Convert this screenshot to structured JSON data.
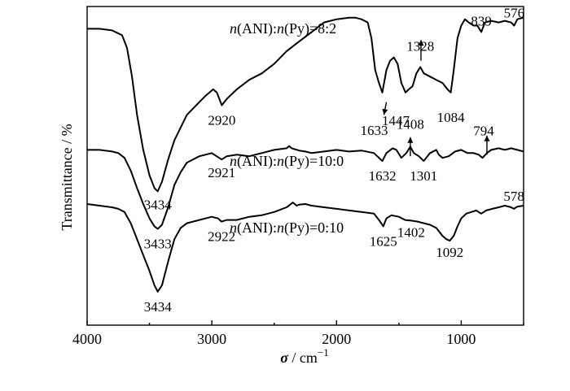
{
  "chart_data": {
    "type": "line",
    "xlabel_symbol": "σ",
    "xlabel_unit": " / cm",
    "xlabel_sup": "−1",
    "ylabel": "Transmittance / %",
    "xlim": [
      4000,
      500
    ],
    "x_reversed": true,
    "x_ticks": [
      4000,
      3000,
      2000,
      1000
    ],
    "x_tick_labels": [
      "4000",
      "3000",
      "2000",
      "1000"
    ],
    "grid": false,
    "legend": "none",
    "y_scale": "arbitrary",
    "ylim": [
      0,
      100
    ],
    "series": [
      {
        "label_prefix_a": "n",
        "label_mid_a": "(ANI):",
        "label_prefix_b": "n",
        "label_mid_b": "(Py)=8:2",
        "points": [
          [
            4000,
            93
          ],
          [
            3900,
            93
          ],
          [
            3800,
            92.5
          ],
          [
            3720,
            91
          ],
          [
            3680,
            87
          ],
          [
            3640,
            78
          ],
          [
            3600,
            66
          ],
          [
            3550,
            55
          ],
          [
            3500,
            47
          ],
          [
            3460,
            43
          ],
          [
            3434,
            42
          ],
          [
            3400,
            45
          ],
          [
            3350,
            52
          ],
          [
            3300,
            58
          ],
          [
            3200,
            66
          ],
          [
            3100,
            70
          ],
          [
            3050,
            72
          ],
          [
            2990,
            74
          ],
          [
            2960,
            73
          ],
          [
            2920,
            69
          ],
          [
            2880,
            71
          ],
          [
            2800,
            74
          ],
          [
            2700,
            77
          ],
          [
            2600,
            79
          ],
          [
            2500,
            82
          ],
          [
            2400,
            86
          ],
          [
            2300,
            89
          ],
          [
            2200,
            92
          ],
          [
            2100,
            95
          ],
          [
            2000,
            96
          ],
          [
            1900,
            96.5
          ],
          [
            1850,
            96.5
          ],
          [
            1800,
            96
          ],
          [
            1750,
            95
          ],
          [
            1720,
            90
          ],
          [
            1690,
            80
          ],
          [
            1660,
            76
          ],
          [
            1633,
            73
          ],
          [
            1600,
            80
          ],
          [
            1570,
            83
          ],
          [
            1540,
            84
          ],
          [
            1510,
            82
          ],
          [
            1480,
            76
          ],
          [
            1447,
            73
          ],
          [
            1420,
            74
          ],
          [
            1390,
            75
          ],
          [
            1360,
            79
          ],
          [
            1328,
            81
          ],
          [
            1300,
            79
          ],
          [
            1250,
            78
          ],
          [
            1200,
            77
          ],
          [
            1150,
            76
          ],
          [
            1110,
            74
          ],
          [
            1084,
            73
          ],
          [
            1060,
            80
          ],
          [
            1030,
            90
          ],
          [
            1000,
            94
          ],
          [
            970,
            96
          ],
          [
            940,
            95
          ],
          [
            900,
            94
          ],
          [
            870,
            94
          ],
          [
            839,
            92
          ],
          [
            810,
            95
          ],
          [
            760,
            95.5
          ],
          [
            700,
            95
          ],
          [
            650,
            95.5
          ],
          [
            600,
            95
          ],
          [
            576,
            94
          ],
          [
            550,
            96
          ],
          [
            500,
            96.5
          ]
        ],
        "peaks": [
          {
            "x": 3434,
            "label": "3434"
          },
          {
            "x": 2920,
            "label": "2920"
          },
          {
            "x": 1633,
            "label": "1633"
          },
          {
            "x": 1447,
            "label": "1447"
          },
          {
            "x": 1328,
            "label": "1328"
          },
          {
            "x": 1084,
            "label": "1084"
          },
          {
            "x": 839,
            "label": "839"
          },
          {
            "x": 576,
            "label": "576"
          }
        ]
      },
      {
        "label_prefix_a": "n",
        "label_mid_a": "(ANI):",
        "label_prefix_b": "n",
        "label_mid_b": "(Py)=10:0",
        "points": [
          [
            4000,
            55
          ],
          [
            3900,
            55
          ],
          [
            3800,
            54.5
          ],
          [
            3750,
            54
          ],
          [
            3700,
            52.5
          ],
          [
            3650,
            48.5
          ],
          [
            3600,
            43
          ],
          [
            3550,
            38
          ],
          [
            3500,
            33.5
          ],
          [
            3460,
            31
          ],
          [
            3433,
            30.2
          ],
          [
            3400,
            31.5
          ],
          [
            3350,
            37
          ],
          [
            3300,
            44
          ],
          [
            3250,
            48
          ],
          [
            3200,
            51
          ],
          [
            3100,
            53
          ],
          [
            3000,
            54
          ],
          [
            2921,
            52
          ],
          [
            2880,
            53
          ],
          [
            2800,
            53.5
          ],
          [
            2700,
            53
          ],
          [
            2600,
            54
          ],
          [
            2500,
            55
          ],
          [
            2400,
            55.5
          ],
          [
            2380,
            56.2
          ],
          [
            2360,
            55.5
          ],
          [
            2300,
            54.8
          ],
          [
            2250,
            54.5
          ],
          [
            2200,
            54
          ],
          [
            2100,
            54.5
          ],
          [
            2000,
            55
          ],
          [
            1900,
            54.5
          ],
          [
            1800,
            54.8
          ],
          [
            1700,
            54
          ],
          [
            1660,
            52.5
          ],
          [
            1632,
            51.5
          ],
          [
            1600,
            54
          ],
          [
            1550,
            55.5
          ],
          [
            1520,
            55
          ],
          [
            1480,
            52.5
          ],
          [
            1440,
            54
          ],
          [
            1408,
            56
          ],
          [
            1380,
            54
          ],
          [
            1340,
            53
          ],
          [
            1301,
            51.5
          ],
          [
            1250,
            54
          ],
          [
            1200,
            55
          ],
          [
            1180,
            53.5
          ],
          [
            1150,
            52.5
          ],
          [
            1100,
            53
          ],
          [
            1050,
            54.5
          ],
          [
            1000,
            55
          ],
          [
            950,
            54
          ],
          [
            900,
            54
          ],
          [
            860,
            53.5
          ],
          [
            830,
            52.5
          ],
          [
            794,
            54
          ],
          [
            760,
            55
          ],
          [
            700,
            55.5
          ],
          [
            650,
            55
          ],
          [
            600,
            55.5
          ],
          [
            550,
            55
          ],
          [
            500,
            54.5
          ]
        ],
        "peaks": [
          {
            "x": 3433,
            "label": "3433"
          },
          {
            "x": 2921,
            "label": "2921"
          },
          {
            "x": 1632,
            "label": "1632"
          },
          {
            "x": 1408,
            "label": "1408"
          },
          {
            "x": 1301,
            "label": "1301"
          },
          {
            "x": 794,
            "label": "794"
          }
        ]
      },
      {
        "label_prefix_a": "n",
        "label_mid_a": "(ANI):",
        "label_prefix_b": "n",
        "label_mid_b": "(Py)=0:10",
        "points": [
          [
            4000,
            38
          ],
          [
            3900,
            37.5
          ],
          [
            3800,
            37
          ],
          [
            3750,
            36.5
          ],
          [
            3700,
            35.5
          ],
          [
            3650,
            32
          ],
          [
            3600,
            27
          ],
          [
            3550,
            22
          ],
          [
            3500,
            17
          ],
          [
            3460,
            12.5
          ],
          [
            3434,
            10.5
          ],
          [
            3400,
            12.5
          ],
          [
            3350,
            20
          ],
          [
            3300,
            27
          ],
          [
            3250,
            30.5
          ],
          [
            3200,
            32
          ],
          [
            3100,
            33
          ],
          [
            3000,
            34
          ],
          [
            2950,
            33.5
          ],
          [
            2922,
            32.5
          ],
          [
            2880,
            33
          ],
          [
            2800,
            33
          ],
          [
            2700,
            34
          ],
          [
            2600,
            34.5
          ],
          [
            2500,
            35.5
          ],
          [
            2400,
            37
          ],
          [
            2350,
            38.5
          ],
          [
            2320,
            37.5
          ],
          [
            2300,
            37.8
          ],
          [
            2250,
            38
          ],
          [
            2200,
            37.5
          ],
          [
            2100,
            37
          ],
          [
            2000,
            36.5
          ],
          [
            1900,
            36
          ],
          [
            1800,
            35.5
          ],
          [
            1700,
            35
          ],
          [
            1660,
            33
          ],
          [
            1625,
            31
          ],
          [
            1600,
            33.5
          ],
          [
            1560,
            34.5
          ],
          [
            1500,
            34
          ],
          [
            1450,
            33
          ],
          [
            1402,
            32.8
          ],
          [
            1350,
            32.5
          ],
          [
            1300,
            32
          ],
          [
            1250,
            31.5
          ],
          [
            1200,
            30.5
          ],
          [
            1150,
            28
          ],
          [
            1120,
            27
          ],
          [
            1092,
            26.5
          ],
          [
            1060,
            28
          ],
          [
            1030,
            31
          ],
          [
            1000,
            33.5
          ],
          [
            960,
            35
          ],
          [
            920,
            35.5
          ],
          [
            880,
            36
          ],
          [
            840,
            35
          ],
          [
            800,
            36
          ],
          [
            750,
            36.5
          ],
          [
            700,
            37
          ],
          [
            650,
            37.5
          ],
          [
            600,
            37
          ],
          [
            578,
            36.5
          ],
          [
            550,
            37.2
          ],
          [
            500,
            37.5
          ]
        ],
        "peaks": [
          {
            "x": 3434,
            "label": "3434"
          },
          {
            "x": 2922,
            "label": "2922"
          },
          {
            "x": 1625,
            "label": "1625"
          },
          {
            "x": 1402,
            "label": "1402"
          },
          {
            "x": 1092,
            "label": "1092"
          },
          {
            "x": 578,
            "label": "578"
          }
        ]
      }
    ]
  }
}
